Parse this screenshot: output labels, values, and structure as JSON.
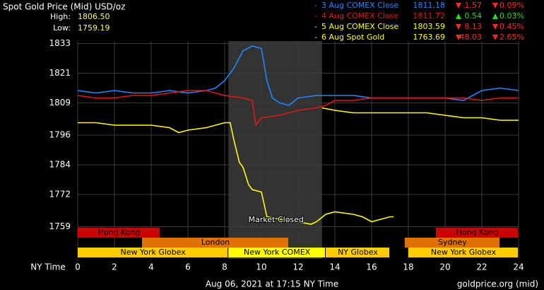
{
  "chart_data": {
    "type": "line",
    "title": "Spot Gold Price (Mid) USD/oz",
    "high_label": "High:",
    "high": "1806.50",
    "low_label": "Low:",
    "low": "1759.19",
    "xlabel": "NY Time",
    "xlim": [
      0,
      24
    ],
    "xticks": [
      0,
      2,
      4,
      6,
      8,
      10,
      12,
      14,
      16,
      18,
      20,
      22,
      24
    ],
    "ylim": [
      1746,
      1834
    ],
    "yticks": [
      1759,
      1772,
      1784,
      1796,
      1809,
      1821,
      1833
    ],
    "grid": true,
    "annotation": "Market Closed",
    "sessions": [
      "Hong Kong",
      "Hong Kong",
      "London",
      "Sydney",
      "New York Globex",
      "New York COMEX",
      "NY Globex",
      "New York Globex"
    ],
    "footer": "Aug 06, 2021 at 17:15 NY Time",
    "source": "goldprice.org (mid)",
    "series": [
      {
        "name": "3 Aug COMEX Close",
        "color": "#1e88ff",
        "close": "1811.18",
        "change": "1.57",
        "change_pct": "0.09%",
        "direction": "down",
        "x": [
          0,
          1,
          2,
          3,
          4,
          5,
          6,
          7,
          7.5,
          8,
          8.5,
          9,
          9.5,
          10,
          10.3,
          10.6,
          11,
          11.5,
          12,
          13,
          14,
          15,
          16,
          17,
          18,
          19,
          20,
          21,
          22,
          23,
          24
        ],
        "values": [
          1814,
          1813,
          1814,
          1813,
          1813,
          1814,
          1813,
          1814,
          1815,
          1818,
          1823,
          1830,
          1832,
          1831,
          1818,
          1811,
          1809,
          1808,
          1811,
          1812,
          1812,
          1812,
          1811,
          1811,
          1811,
          1811,
          1811,
          1810,
          1814,
          1815,
          1814
        ]
      },
      {
        "name": "4 Aug COMEX Close",
        "color": "#e01818",
        "close": "1811.72",
        "change": "0.54",
        "change_pct": "0.03%",
        "direction": "up",
        "x": [
          0,
          1,
          2,
          3,
          4,
          5,
          6,
          7,
          8,
          9,
          9.5,
          9.7,
          10,
          11,
          12,
          13,
          13.5,
          14,
          15,
          16,
          17,
          18,
          19,
          20,
          21,
          22,
          23,
          24
        ],
        "values": [
          1812,
          1811,
          1811,
          1812,
          1812,
          1813,
          1814,
          1814,
          1812,
          1811,
          1810,
          1800,
          1803,
          1804,
          1806,
          1807,
          1808,
          1810,
          1810,
          1811,
          1811,
          1811,
          1811,
          1811,
          1811,
          1810,
          1811,
          1811
        ]
      },
      {
        "name": "5 Aug COMEX Close",
        "color": "#ffff00",
        "close": "1803.59",
        "change": "8.13",
        "change_pct": "0.45%",
        "direction": "down",
        "x": [
          13.3,
          14,
          15,
          16,
          17,
          18,
          19,
          20,
          21,
          22,
          23,
          24
        ],
        "values": [
          1807,
          1806,
          1805,
          1805,
          1805,
          1805,
          1805,
          1804,
          1803,
          1803,
          1802,
          1802
        ]
      },
      {
        "name": "6 Aug Spot Gold",
        "color": "#ffff00",
        "close": "1763.69",
        "change": "48.03",
        "change_pct": "2.65%",
        "direction": "down",
        "x": [
          0,
          1,
          2,
          3,
          4,
          5,
          5.5,
          6,
          7,
          8,
          8.3,
          8.5,
          8.8,
          9,
          9.3,
          9.5,
          10,
          10.3,
          11,
          12,
          12.7,
          13,
          13.5,
          14,
          15,
          15.5,
          16,
          16.5,
          17,
          17.2
        ],
        "values": [
          1801,
          1801,
          1800,
          1800,
          1800,
          1799,
          1797,
          1798,
          1799,
          1801,
          1801,
          1794,
          1785,
          1783,
          1776,
          1774,
          1773,
          1763,
          1762,
          1761,
          1760,
          1761,
          1764,
          1765,
          1764,
          1763,
          1761,
          1762,
          1763,
          1763
        ]
      }
    ]
  }
}
